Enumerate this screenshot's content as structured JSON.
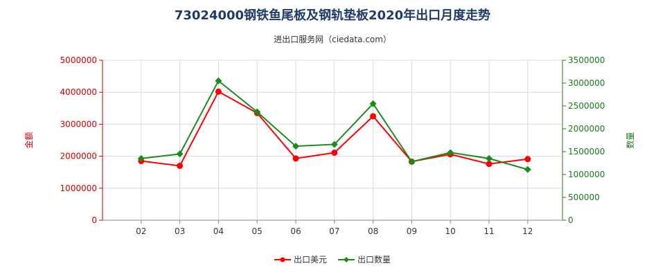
{
  "chart_data": {
    "type": "line",
    "title": "73024000钢铁鱼尾板及钢轨垫板2020年出口月度走势",
    "subtitle": "进出口服务网（ciedata.com）",
    "categories": [
      "02",
      "03",
      "04",
      "05",
      "06",
      "07",
      "08",
      "09",
      "10",
      "11",
      "12"
    ],
    "y_left": {
      "label": "金额",
      "range": [
        0,
        5000000
      ],
      "ticks": [
        "0",
        "1000000",
        "2000000",
        "3000000",
        "4000000",
        "5000000"
      ],
      "color": "#ff0000"
    },
    "y_right": {
      "label": "数量",
      "range": [
        0,
        3500000
      ],
      "ticks": [
        "0",
        "500000",
        "1000000",
        "1500000",
        "2000000",
        "2500000",
        "3000000",
        "3500000"
      ],
      "color": "#1b8a1b"
    },
    "series": [
      {
        "name": "出口美元",
        "axis": "left",
        "color": "#ff0000",
        "marker": "circle",
        "values": [
          1850000,
          1700000,
          4020000,
          3350000,
          1930000,
          2110000,
          3250000,
          1830000,
          2060000,
          1760000,
          1910000
        ]
      },
      {
        "name": "出口数量",
        "axis": "right",
        "color": "#1b8a1b",
        "marker": "diamond",
        "values": [
          1350000,
          1450000,
          3050000,
          2370000,
          1620000,
          1660000,
          2550000,
          1280000,
          1480000,
          1350000,
          1110000
        ]
      }
    ],
    "grid": true,
    "legend_position": "bottom"
  }
}
